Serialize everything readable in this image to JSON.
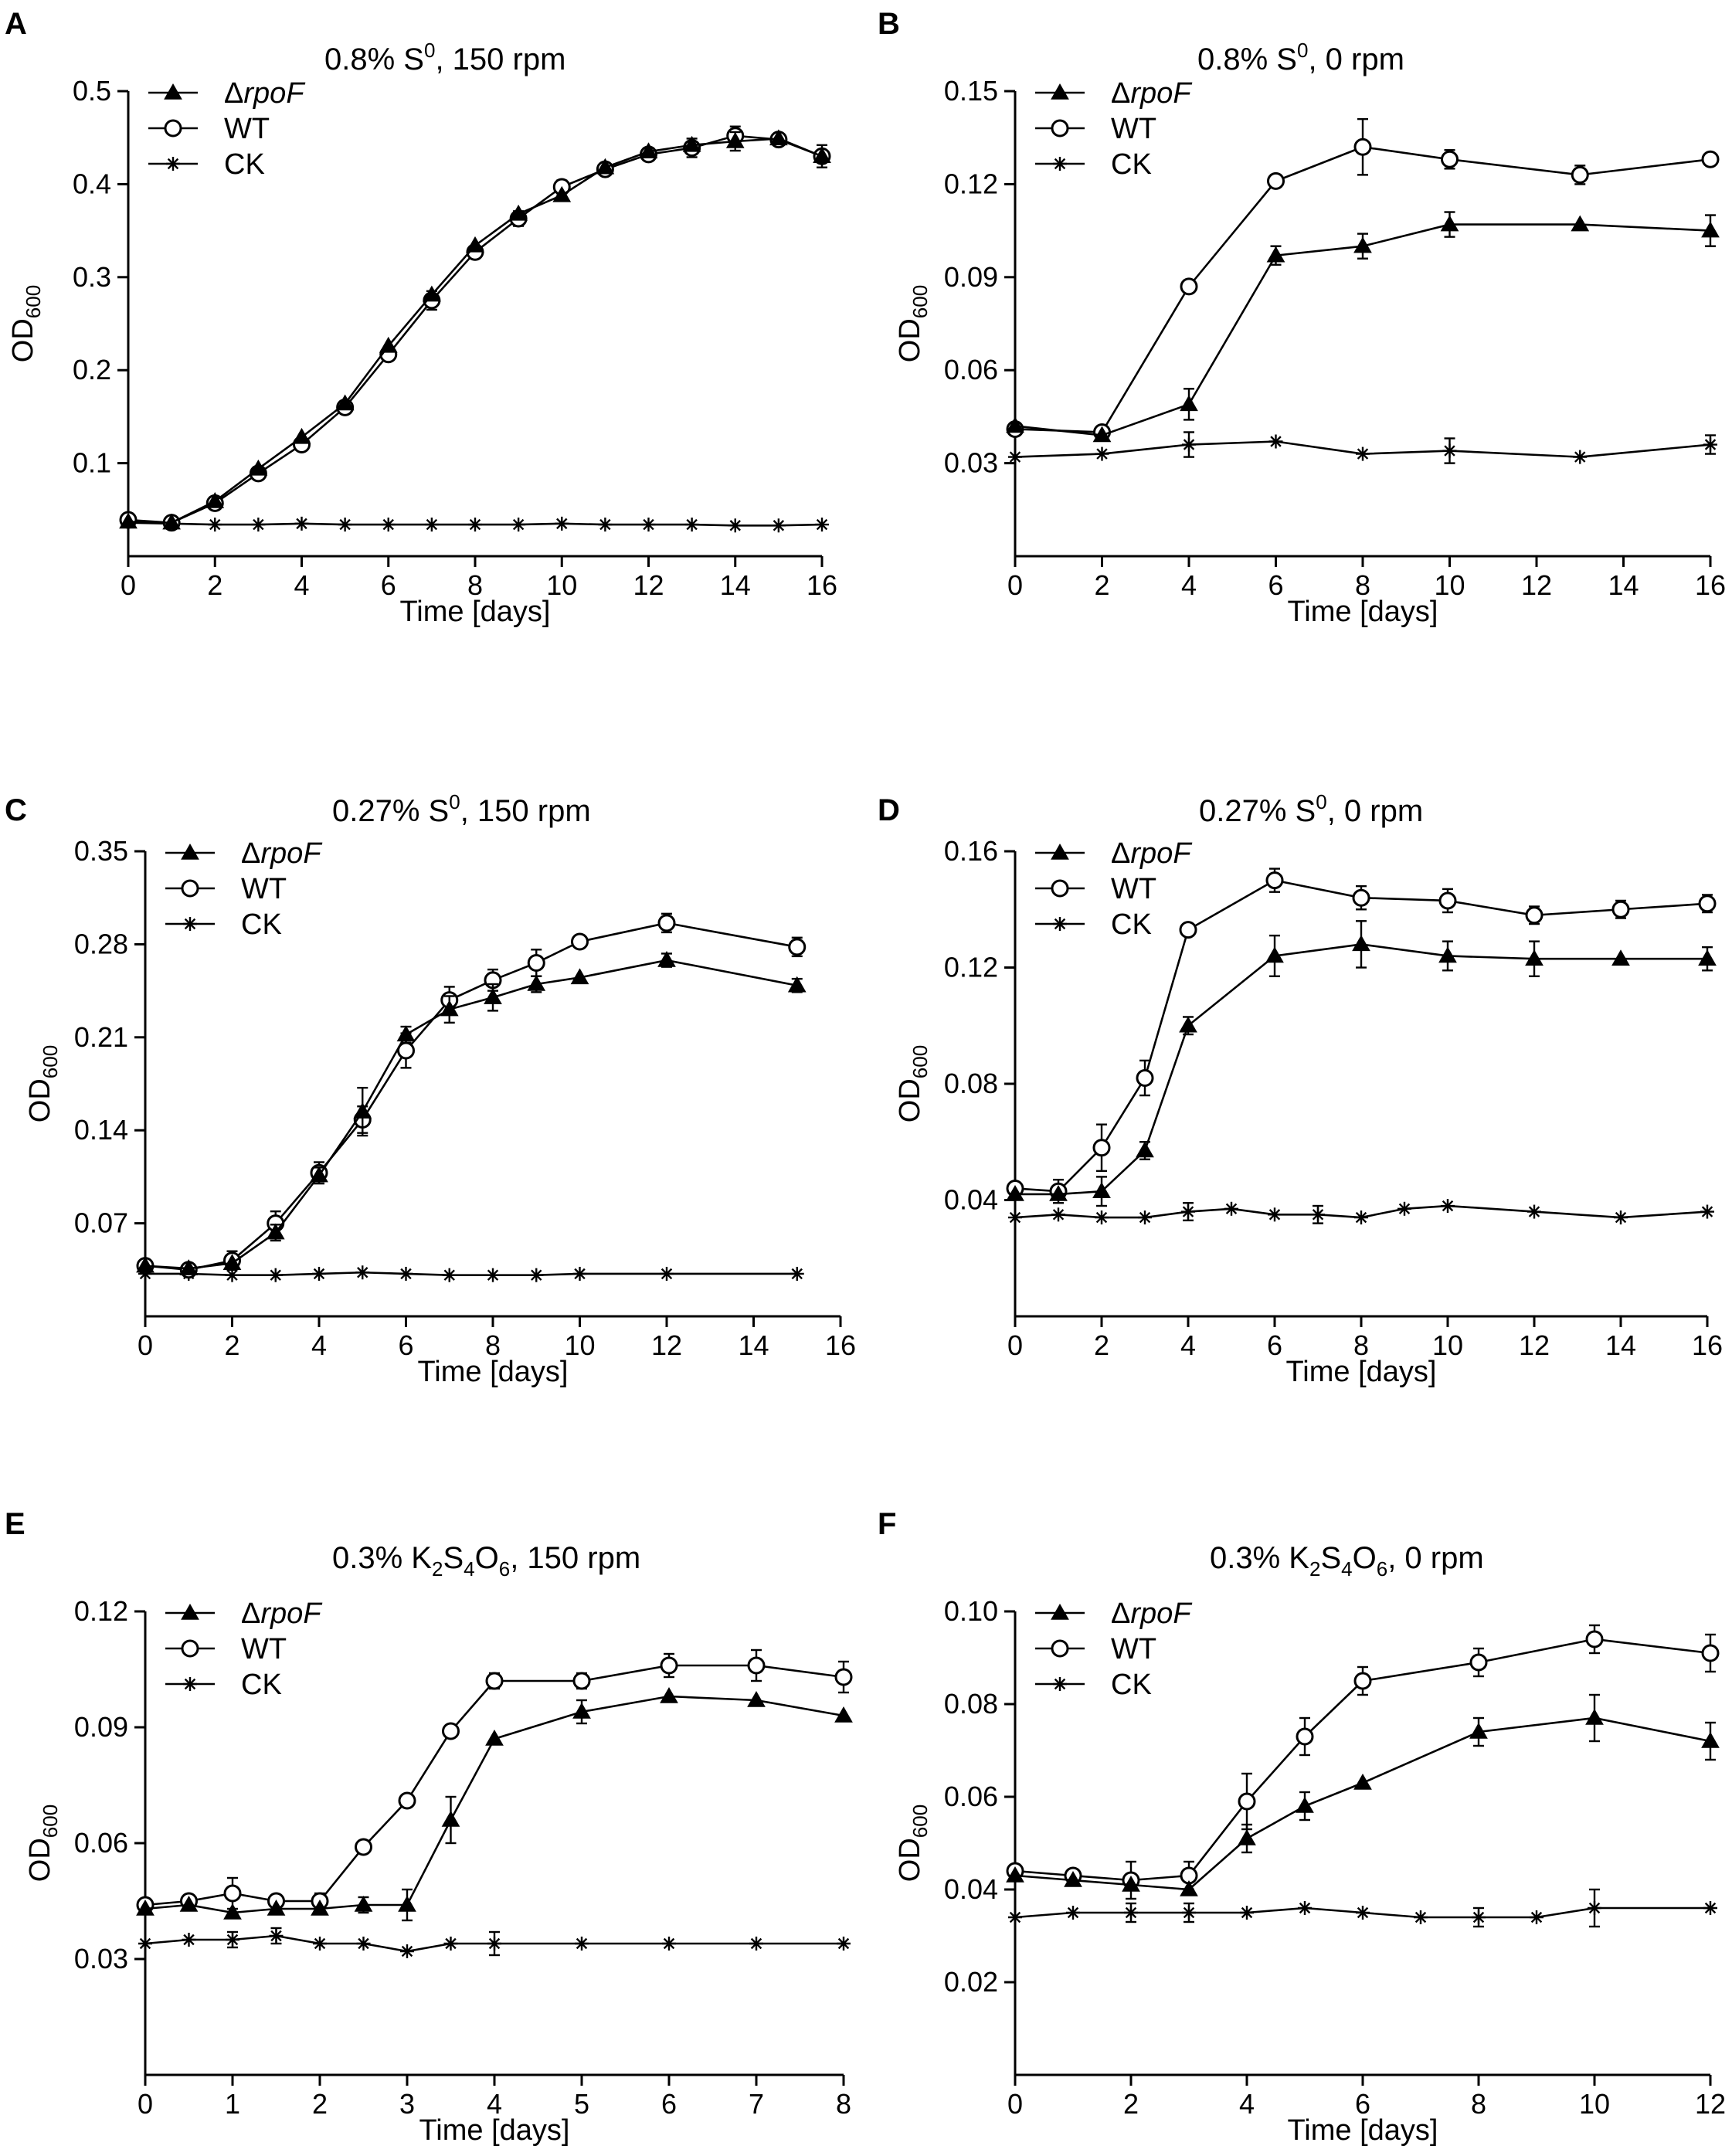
{
  "chart_data": [
    {
      "type": "line",
      "panel_label": "A",
      "title": {
        "pre": "0.8% S",
        "sup": "0",
        "post": ", 150 rpm"
      },
      "xlabel": "Time [days]",
      "ylabel": {
        "base": "OD",
        "sub": "600"
      },
      "xlim": [
        0,
        16
      ],
      "ylim": [
        0,
        0.5
      ],
      "xticks": [
        0,
        2,
        4,
        6,
        8,
        10,
        12,
        14,
        16
      ],
      "xtick_labels": [
        "0",
        "2",
        "4",
        "6",
        "8",
        "10",
        "12",
        "14",
        "16"
      ],
      "yticks": [
        0.1,
        0.2,
        0.3,
        0.4,
        0.5
      ],
      "ytick_labels": [
        "0.1",
        "0.2",
        "0.3",
        "0.4",
        "0.5"
      ],
      "series": [
        {
          "name": "ΔrpoF",
          "italic_part": "rpoF",
          "marker": "triangle",
          "x": [
            0,
            1,
            2,
            3,
            4,
            5,
            6,
            7,
            8,
            9,
            10,
            11,
            12,
            13,
            14,
            15,
            16
          ],
          "y": [
            0.037,
            0.036,
            0.059,
            0.094,
            0.128,
            0.164,
            0.226,
            0.281,
            0.334,
            0.368,
            0.388,
            0.418,
            0.435,
            0.442,
            0.446,
            0.449,
            0.43
          ],
          "err": [
            0,
            0,
            0,
            0,
            0,
            0,
            0,
            0,
            0,
            0,
            0,
            0,
            0,
            0,
            0.01,
            0,
            0
          ]
        },
        {
          "name": "WT",
          "marker": "circle",
          "x": [
            0,
            1,
            2,
            3,
            4,
            5,
            6,
            7,
            8,
            9,
            10,
            11,
            12,
            13,
            14,
            15,
            16
          ],
          "y": [
            0.039,
            0.036,
            0.057,
            0.089,
            0.12,
            0.16,
            0.217,
            0.275,
            0.327,
            0.363,
            0.397,
            0.416,
            0.432,
            0.439,
            0.452,
            0.448,
            0.43
          ],
          "err": [
            0,
            0,
            0,
            0,
            0,
            0,
            0,
            0.01,
            0,
            0.008,
            0.007,
            0.006,
            0.005,
            0.01,
            0.01,
            0,
            0.012
          ]
        },
        {
          "name": "CK",
          "marker": "star",
          "x": [
            0,
            1,
            2,
            3,
            4,
            5,
            6,
            7,
            8,
            9,
            10,
            11,
            12,
            13,
            14,
            15,
            16
          ],
          "y": [
            0.036,
            0.035,
            0.034,
            0.034,
            0.035,
            0.034,
            0.034,
            0.034,
            0.034,
            0.034,
            0.035,
            0.034,
            0.034,
            0.034,
            0.033,
            0.033,
            0.034
          ],
          "err": [
            0,
            0,
            0,
            0,
            0,
            0,
            0,
            0,
            0,
            0,
            0,
            0,
            0,
            0,
            0,
            0,
            0
          ]
        }
      ]
    },
    {
      "type": "line",
      "panel_label": "B",
      "title": {
        "pre": "0.8% S",
        "sup": "0",
        "post": ", 0 rpm"
      },
      "xlabel": "Time [days]",
      "ylabel": {
        "base": "OD",
        "sub": "600"
      },
      "xlim": [
        0,
        16
      ],
      "ylim": [
        0,
        0.15
      ],
      "xticks": [
        0,
        2,
        4,
        6,
        8,
        10,
        12,
        14,
        16
      ],
      "xtick_labels": [
        "0",
        "2",
        "4",
        "6",
        "8",
        "10",
        "12",
        "14",
        "16"
      ],
      "yticks": [
        0.03,
        0.06,
        0.09,
        0.12,
        0.15
      ],
      "ytick_labels": [
        "0.03",
        "0.06",
        "0.09",
        "0.12",
        "0.15"
      ],
      "series": [
        {
          "name": "ΔrpoF",
          "italic_part": "rpoF",
          "marker": "triangle",
          "x": [
            0,
            2,
            4,
            6,
            8,
            10,
            13,
            16
          ],
          "y": [
            0.042,
            0.039,
            0.049,
            0.097,
            0.1,
            0.107,
            0.107,
            0.105
          ],
          "err": [
            0,
            0,
            0.005,
            0.003,
            0.004,
            0.004,
            0,
            0.005
          ]
        },
        {
          "name": "WT",
          "marker": "circle",
          "x": [
            0,
            2,
            4,
            6,
            8,
            10,
            13,
            16
          ],
          "y": [
            0.041,
            0.04,
            0.087,
            0.121,
            0.132,
            0.128,
            0.123,
            0.128
          ],
          "err": [
            0,
            0,
            0.002,
            0,
            0.009,
            0.003,
            0.003,
            0
          ]
        },
        {
          "name": "CK",
          "marker": "star",
          "x": [
            0,
            2,
            4,
            6,
            8,
            10,
            13,
            16
          ],
          "y": [
            0.032,
            0.033,
            0.036,
            0.037,
            0.033,
            0.034,
            0.032,
            0.036
          ],
          "err": [
            0,
            0,
            0.004,
            0,
            0,
            0.004,
            0,
            0.003
          ]
        }
      ]
    },
    {
      "type": "line",
      "panel_label": "C",
      "title": {
        "pre": "0.27% S",
        "sup": "0",
        "post": ", 150 rpm"
      },
      "xlabel": "Time [days]",
      "ylabel": {
        "base": "OD",
        "sub": "600"
      },
      "xlim": [
        0,
        16
      ],
      "ylim": [
        0,
        0.35
      ],
      "xticks": [
        0,
        2,
        4,
        6,
        8,
        10,
        12,
        14,
        16
      ],
      "xtick_labels": [
        "0",
        "2",
        "4",
        "6",
        "8",
        "10",
        "12",
        "14",
        "16"
      ],
      "yticks": [
        0.07,
        0.14,
        0.21,
        0.28,
        0.35
      ],
      "ytick_labels": [
        "0.07",
        "0.14",
        "0.21",
        "0.28",
        "0.35"
      ],
      "series": [
        {
          "name": "ΔrpoF",
          "italic_part": "rpoF",
          "marker": "triangle",
          "x": [
            0,
            1,
            2,
            3,
            4,
            5,
            6,
            7,
            8,
            9,
            10,
            12,
            15
          ],
          "y": [
            0.038,
            0.036,
            0.04,
            0.063,
            0.106,
            0.154,
            0.212,
            0.231,
            0.24,
            0.25,
            0.255,
            0.268,
            0.249
          ],
          "err": [
            0,
            0,
            0,
            0.006,
            0.006,
            0.018,
            0.006,
            0.01,
            0.01,
            0.006,
            0,
            0.005,
            0.005
          ]
        },
        {
          "name": "WT",
          "marker": "circle",
          "x": [
            0,
            1,
            2,
            3,
            4,
            5,
            6,
            7,
            8,
            9,
            10,
            12,
            15
          ],
          "y": [
            0.038,
            0.035,
            0.042,
            0.07,
            0.108,
            0.148,
            0.2,
            0.238,
            0.253,
            0.266,
            0.282,
            0.296,
            0.278
          ],
          "err": [
            0,
            0,
            0.007,
            0.009,
            0.008,
            0.01,
            0.013,
            0.01,
            0.008,
            0.01,
            0,
            0.007,
            0.007
          ]
        },
        {
          "name": "CK",
          "marker": "star",
          "x": [
            0,
            1,
            2,
            3,
            4,
            5,
            6,
            7,
            8,
            9,
            10,
            12,
            15
          ],
          "y": [
            0.032,
            0.032,
            0.031,
            0.031,
            0.032,
            0.033,
            0.032,
            0.031,
            0.031,
            0.031,
            0.032,
            0.032,
            0.032
          ],
          "err": [
            0,
            0,
            0,
            0,
            0,
            0,
            0,
            0,
            0,
            0,
            0,
            0,
            0
          ]
        }
      ]
    },
    {
      "type": "line",
      "panel_label": "D",
      "title": {
        "pre": "0.27% S",
        "sup": "0",
        "post": ", 0 rpm"
      },
      "xlabel": "Time [days]",
      "ylabel": {
        "base": "OD",
        "sub": "600"
      },
      "xlim": [
        0,
        16
      ],
      "ylim": [
        0,
        0.16
      ],
      "xticks": [
        0,
        2,
        4,
        6,
        8,
        10,
        12,
        14,
        16
      ],
      "xtick_labels": [
        "0",
        "2",
        "4",
        "6",
        "8",
        "10",
        "12",
        "14",
        "16"
      ],
      "yticks": [
        0.04,
        0.08,
        0.12,
        0.16
      ],
      "ytick_labels": [
        "0.04",
        "0.08",
        "0.12",
        "0.16"
      ],
      "series": [
        {
          "name": "ΔrpoF",
          "italic_part": "rpoF",
          "marker": "triangle",
          "x": [
            0,
            1,
            2,
            3,
            4,
            6,
            8,
            10,
            12,
            14,
            16
          ],
          "y": [
            0.042,
            0.042,
            0.043,
            0.057,
            0.1,
            0.124,
            0.128,
            0.124,
            0.123,
            0.123,
            0.123
          ],
          "err": [
            0,
            0,
            0.005,
            0.003,
            0.003,
            0.007,
            0.008,
            0.005,
            0.006,
            0,
            0.004
          ]
        },
        {
          "name": "WT",
          "marker": "circle",
          "x": [
            0,
            1,
            2,
            3,
            4,
            6,
            8,
            10,
            12,
            14,
            16
          ],
          "y": [
            0.044,
            0.043,
            0.058,
            0.082,
            0.133,
            0.15,
            0.144,
            0.143,
            0.138,
            0.14,
            0.142
          ],
          "err": [
            0,
            0.004,
            0.008,
            0.006,
            0,
            0.004,
            0.004,
            0.004,
            0.003,
            0.003,
            0.003
          ]
        },
        {
          "name": "CK",
          "marker": "star",
          "x": [
            0,
            1,
            2,
            3,
            4,
            5,
            6,
            7,
            8,
            9,
            10,
            12,
            14,
            16
          ],
          "y": [
            0.034,
            0.035,
            0.034,
            0.034,
            0.036,
            0.037,
            0.035,
            0.035,
            0.034,
            0.037,
            0.038,
            0.036,
            0.034,
            0.036
          ],
          "err": [
            0,
            0,
            0,
            0,
            0.003,
            0,
            0,
            0.003,
            0,
            0,
            0,
            0,
            0,
            0
          ]
        }
      ]
    },
    {
      "type": "line",
      "panel_label": "E",
      "title": {
        "pre": "0.3% K",
        "sub1": "2",
        "mid1": "S",
        "sub2": "4",
        "mid2": "O",
        "sub3": "6",
        "post": ", 150 rpm"
      },
      "xlabel": "Time [days]",
      "ylabel": {
        "base": "OD",
        "sub": "600"
      },
      "xlim": [
        0,
        8
      ],
      "ylim": [
        0,
        0.12
      ],
      "xticks": [
        0,
        1,
        2,
        3,
        4,
        5,
        6,
        7,
        8
      ],
      "xtick_labels": [
        "0",
        "1",
        "2",
        "3",
        "4",
        "5",
        "6",
        "7",
        "8"
      ],
      "yticks": [
        0.03,
        0.06,
        0.09,
        0.12
      ],
      "ytick_labels": [
        "0.03",
        "0.06",
        "0.09",
        "0.12"
      ],
      "series": [
        {
          "name": "ΔrpoF",
          "italic_part": "rpoF",
          "marker": "triangle",
          "x": [
            0,
            0.5,
            1,
            1.5,
            2,
            2.5,
            3,
            3.5,
            4,
            5,
            6,
            7,
            8
          ],
          "y": [
            0.043,
            0.044,
            0.042,
            0.043,
            0.043,
            0.044,
            0.044,
            0.066,
            0.087,
            0.094,
            0.098,
            0.097,
            0.093
          ],
          "err": [
            0,
            0,
            0,
            0,
            0,
            0.002,
            0.004,
            0.006,
            0,
            0.003,
            0,
            0,
            0
          ]
        },
        {
          "name": "WT",
          "marker": "circle",
          "x": [
            0,
            0.5,
            1,
            1.5,
            2,
            2.5,
            3,
            3.5,
            4,
            5,
            6,
            7,
            8
          ],
          "y": [
            0.044,
            0.045,
            0.047,
            0.045,
            0.045,
            0.059,
            0.071,
            0.089,
            0.102,
            0.102,
            0.106,
            0.106,
            0.103
          ],
          "err": [
            0,
            0,
            0.004,
            0,
            0.002,
            0,
            0,
            0,
            0.002,
            0.002,
            0.003,
            0.004,
            0.004
          ]
        },
        {
          "name": "CK",
          "marker": "star",
          "x": [
            0,
            0.5,
            1,
            1.5,
            2,
            2.5,
            3,
            3.5,
            4,
            5,
            6,
            7,
            8
          ],
          "y": [
            0.034,
            0.035,
            0.035,
            0.036,
            0.034,
            0.034,
            0.032,
            0.034,
            0.034,
            0.034,
            0.034,
            0.034,
            0.034
          ],
          "err": [
            0,
            0,
            0.002,
            0.002,
            0,
            0,
            0,
            0,
            0.003,
            0,
            0,
            0,
            0
          ]
        }
      ]
    },
    {
      "type": "line",
      "panel_label": "F",
      "title": {
        "pre": "0.3% K",
        "sub1": "2",
        "mid1": "S",
        "sub2": "4",
        "mid2": "O",
        "sub3": "6",
        "post": ", 0 rpm"
      },
      "xlabel": "Time [days]",
      "ylabel": {
        "base": "OD",
        "sub": "600"
      },
      "xlim": [
        0,
        12
      ],
      "ylim": [
        0,
        0.1
      ],
      "xticks": [
        0,
        2,
        4,
        6,
        8,
        10,
        12
      ],
      "xtick_labels": [
        "0",
        "2",
        "4",
        "6",
        "8",
        "10",
        "12"
      ],
      "yticks": [
        0.02,
        0.04,
        0.06,
        0.08,
        0.1
      ],
      "ytick_labels": [
        "0.02",
        "0.04",
        "0.06",
        "0.08",
        "0.10"
      ],
      "series": [
        {
          "name": "ΔrpoF",
          "italic_part": "rpoF",
          "marker": "triangle",
          "x": [
            0,
            1,
            2,
            3,
            4,
            5,
            6,
            8,
            10,
            12
          ],
          "y": [
            0.043,
            0.042,
            0.041,
            0.04,
            0.051,
            0.058,
            0.063,
            0.074,
            0.077,
            0.072
          ],
          "err": [
            0,
            0,
            0,
            0,
            0.003,
            0.003,
            0,
            0.003,
            0.005,
            0.004
          ]
        },
        {
          "name": "WT",
          "marker": "circle",
          "x": [
            0,
            1,
            2,
            3,
            4,
            5,
            6,
            8,
            10,
            12
          ],
          "y": [
            0.044,
            0.043,
            0.042,
            0.043,
            0.059,
            0.073,
            0.085,
            0.089,
            0.094,
            0.091
          ],
          "err": [
            0,
            0,
            0.004,
            0.003,
            0.006,
            0.004,
            0.003,
            0.003,
            0.003,
            0.004
          ]
        },
        {
          "name": "CK",
          "marker": "star",
          "x": [
            0,
            1,
            2,
            3,
            4,
            5,
            6,
            7,
            8,
            9,
            10,
            12
          ],
          "y": [
            0.034,
            0.035,
            0.035,
            0.035,
            0.035,
            0.036,
            0.035,
            0.034,
            0.034,
            0.034,
            0.036,
            0.036
          ],
          "err": [
            0,
            0,
            0.002,
            0.002,
            0,
            0,
            0,
            0,
            0.002,
            0,
            0.004,
            0
          ]
        }
      ]
    }
  ]
}
